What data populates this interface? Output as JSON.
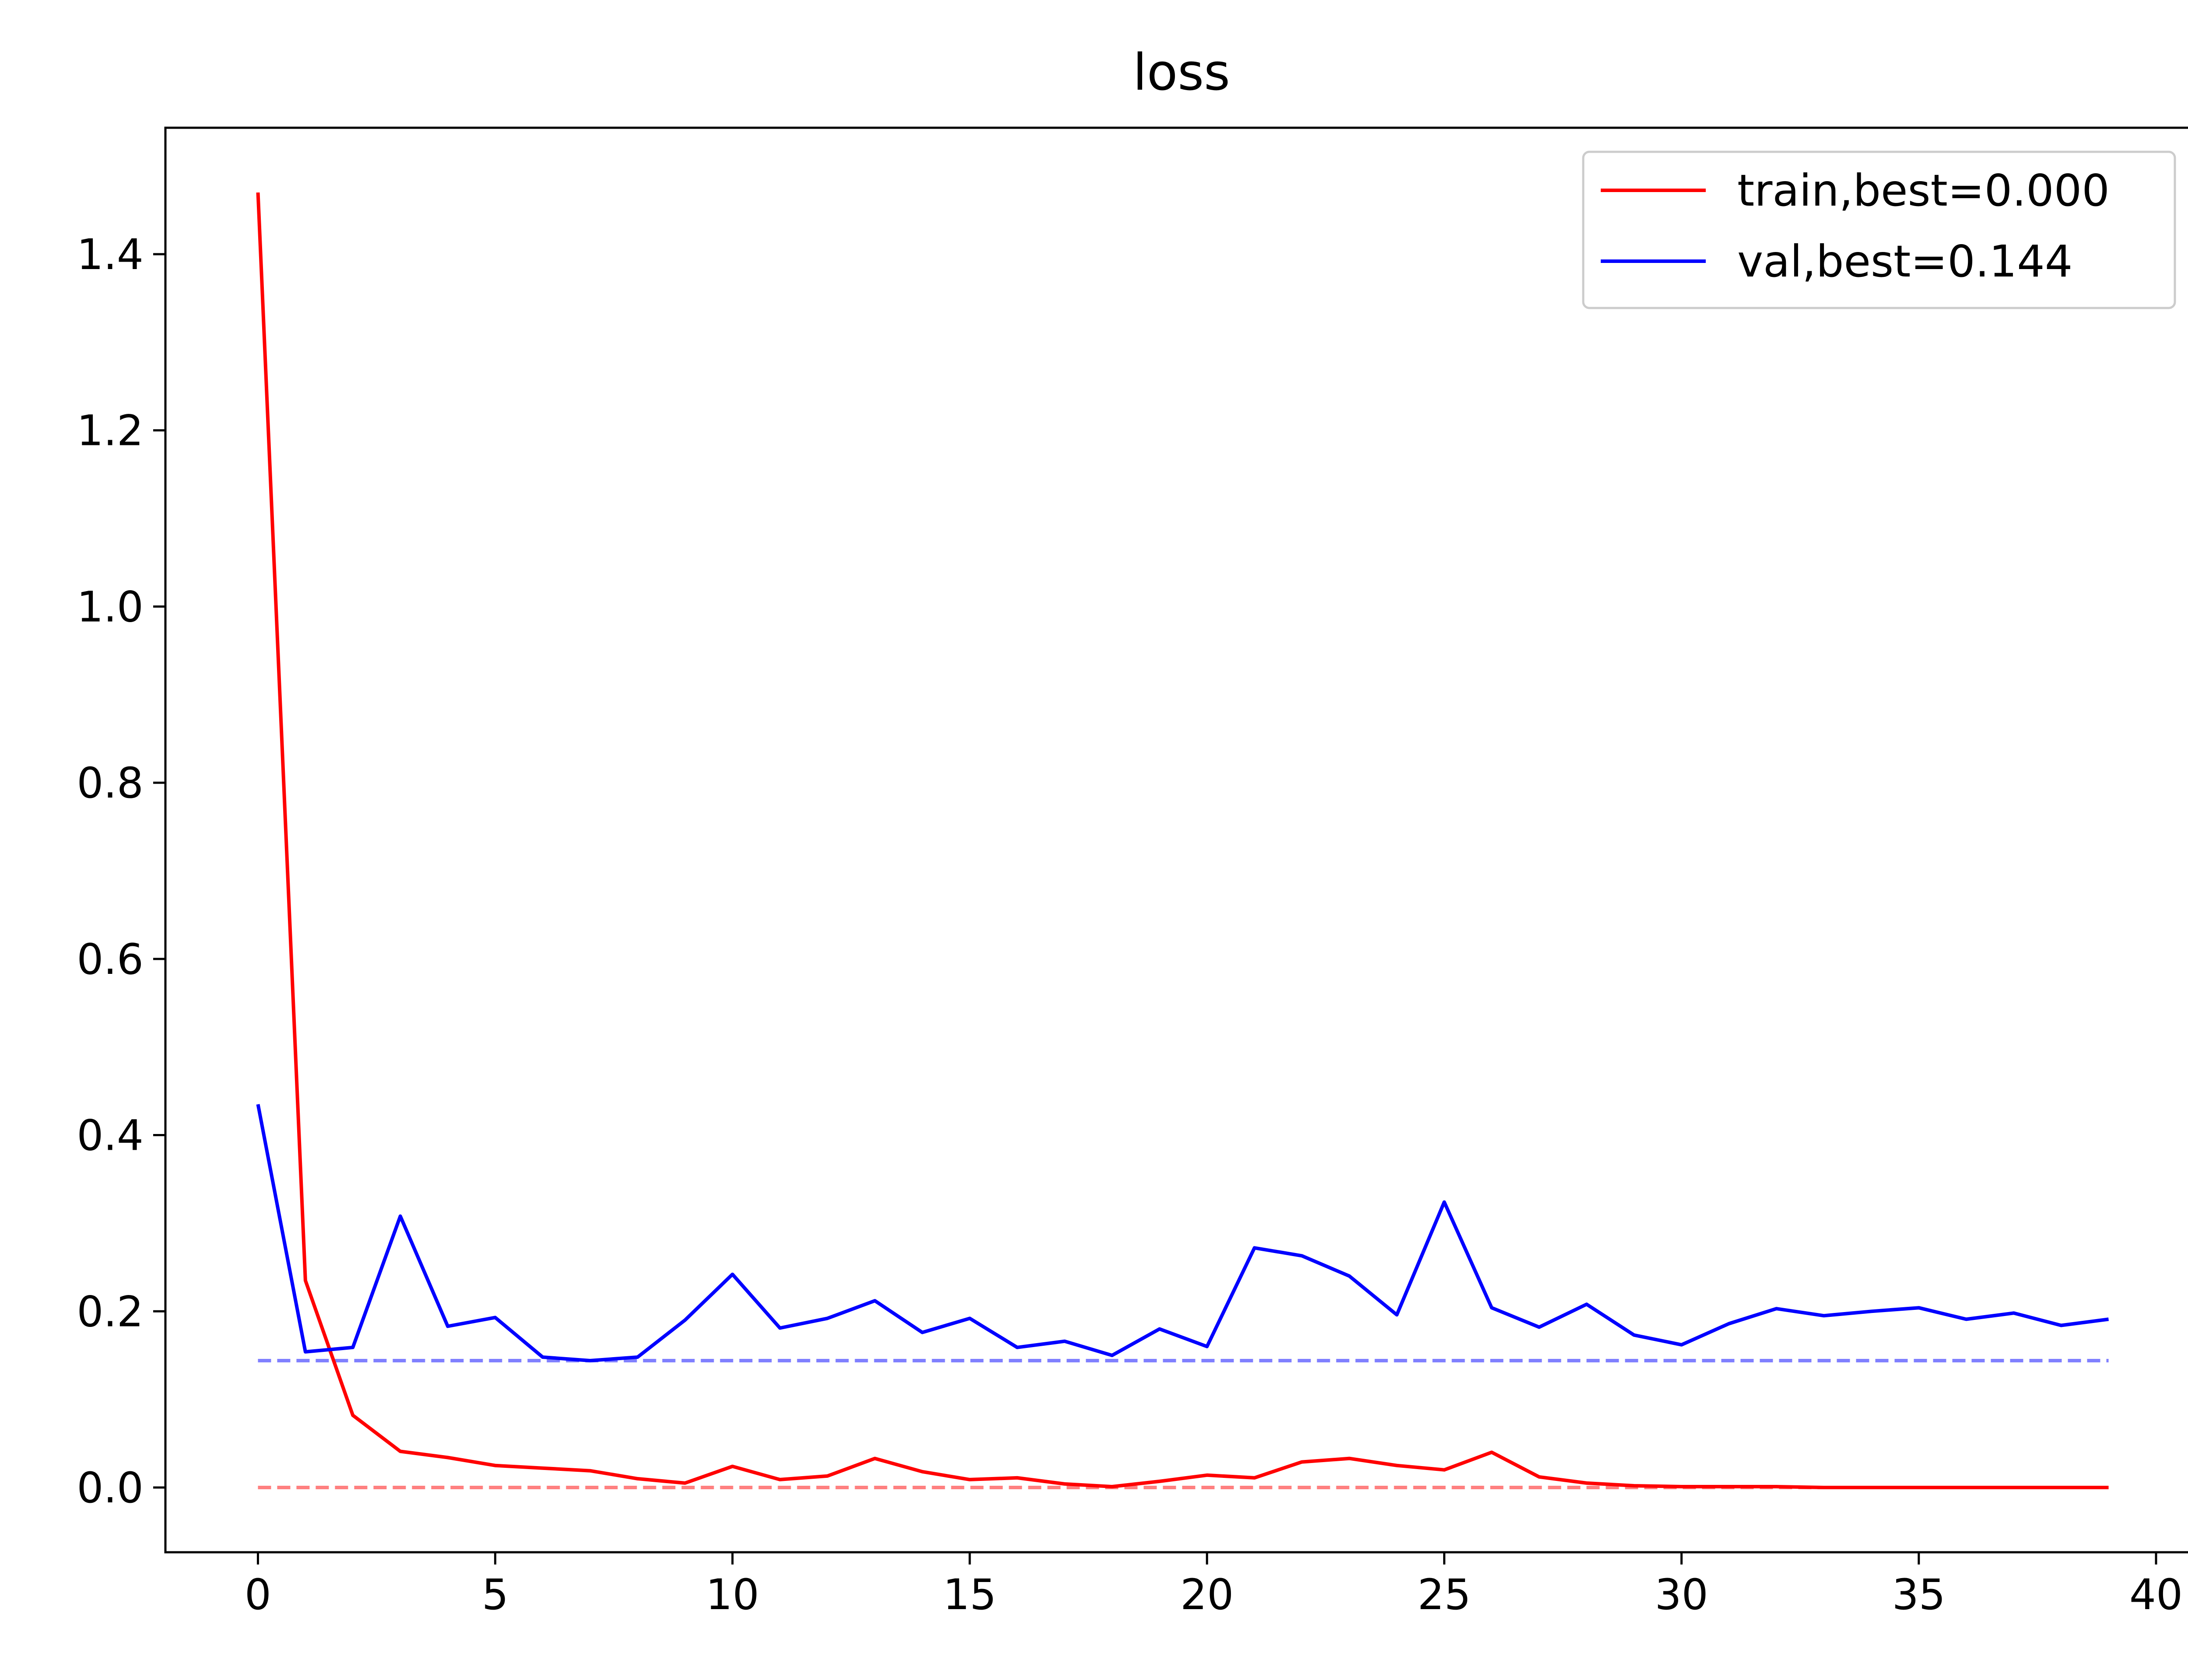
{
  "chart_data": {
    "type": "line",
    "title": "loss",
    "xlabel": "",
    "ylabel": "",
    "xlim": [
      -1.95,
      40.95
    ],
    "ylim": [
      -0.0735,
      1.5435
    ],
    "xticks": [
      0,
      5,
      10,
      15,
      20,
      25,
      30,
      35,
      40
    ],
    "yticks": [
      0.0,
      0.2,
      0.4,
      0.6,
      0.8,
      1.0,
      1.2,
      1.4
    ],
    "xtick_labels": [
      "0",
      "5",
      "10",
      "15",
      "20",
      "25",
      "30",
      "35",
      "40"
    ],
    "ytick_labels": [
      "0.0",
      "0.2",
      "0.4",
      "0.6",
      "0.8",
      "1.0",
      "1.2",
      "1.4"
    ],
    "grid": false,
    "legend_position": "top-right",
    "series": [
      {
        "name": "train,best=0.000",
        "color": "#ff0000",
        "x": [
          0,
          1,
          2,
          3,
          4,
          5,
          6,
          7,
          8,
          9,
          10,
          11,
          12,
          13,
          14,
          15,
          16,
          17,
          18,
          19,
          20,
          21,
          22,
          23,
          24,
          25,
          26,
          27,
          28,
          29,
          30,
          31,
          32,
          33,
          34,
          35,
          36,
          37,
          38,
          39
        ],
        "values": [
          1.47,
          0.235,
          0.082,
          0.041,
          0.034,
          0.025,
          0.022,
          0.019,
          0.01,
          0.005,
          0.024,
          0.009,
          0.013,
          0.033,
          0.018,
          0.009,
          0.011,
          0.004,
          0.001,
          0.007,
          0.014,
          0.011,
          0.029,
          0.033,
          0.025,
          0.02,
          0.04,
          0.012,
          0.005,
          0.002,
          0.001,
          0.001,
          0.001,
          0.0,
          0.0,
          0.0,
          0.0,
          0.0,
          0.0,
          0.0
        ]
      },
      {
        "name": "val,best=0.144",
        "color": "#0000ff",
        "x": [
          0,
          1,
          2,
          3,
          4,
          5,
          6,
          7,
          8,
          9,
          10,
          11,
          12,
          13,
          14,
          15,
          16,
          17,
          18,
          19,
          20,
          21,
          22,
          23,
          24,
          25,
          26,
          27,
          28,
          29,
          30,
          31,
          32,
          33,
          34,
          35,
          36,
          37,
          38,
          39
        ],
        "values": [
          0.435,
          0.154,
          0.159,
          0.308,
          0.183,
          0.193,
          0.148,
          0.144,
          0.148,
          0.19,
          0.242,
          0.181,
          0.192,
          0.212,
          0.176,
          0.192,
          0.159,
          0.166,
          0.15,
          0.18,
          0.16,
          0.272,
          0.263,
          0.24,
          0.196,
          0.324,
          0.204,
          0.182,
          0.208,
          0.173,
          0.162,
          0.186,
          0.203,
          0.195,
          0.2,
          0.204,
          0.191,
          0.198,
          0.184,
          0.191
        ]
      }
    ],
    "reference_lines": [
      {
        "y": 0.0,
        "color": "#ff8080",
        "style": "dashed",
        "x_from": 0,
        "x_to": 39
      },
      {
        "y": 0.144,
        "color": "#8080ff",
        "style": "dashed",
        "x_from": 0,
        "x_to": 39
      }
    ]
  }
}
